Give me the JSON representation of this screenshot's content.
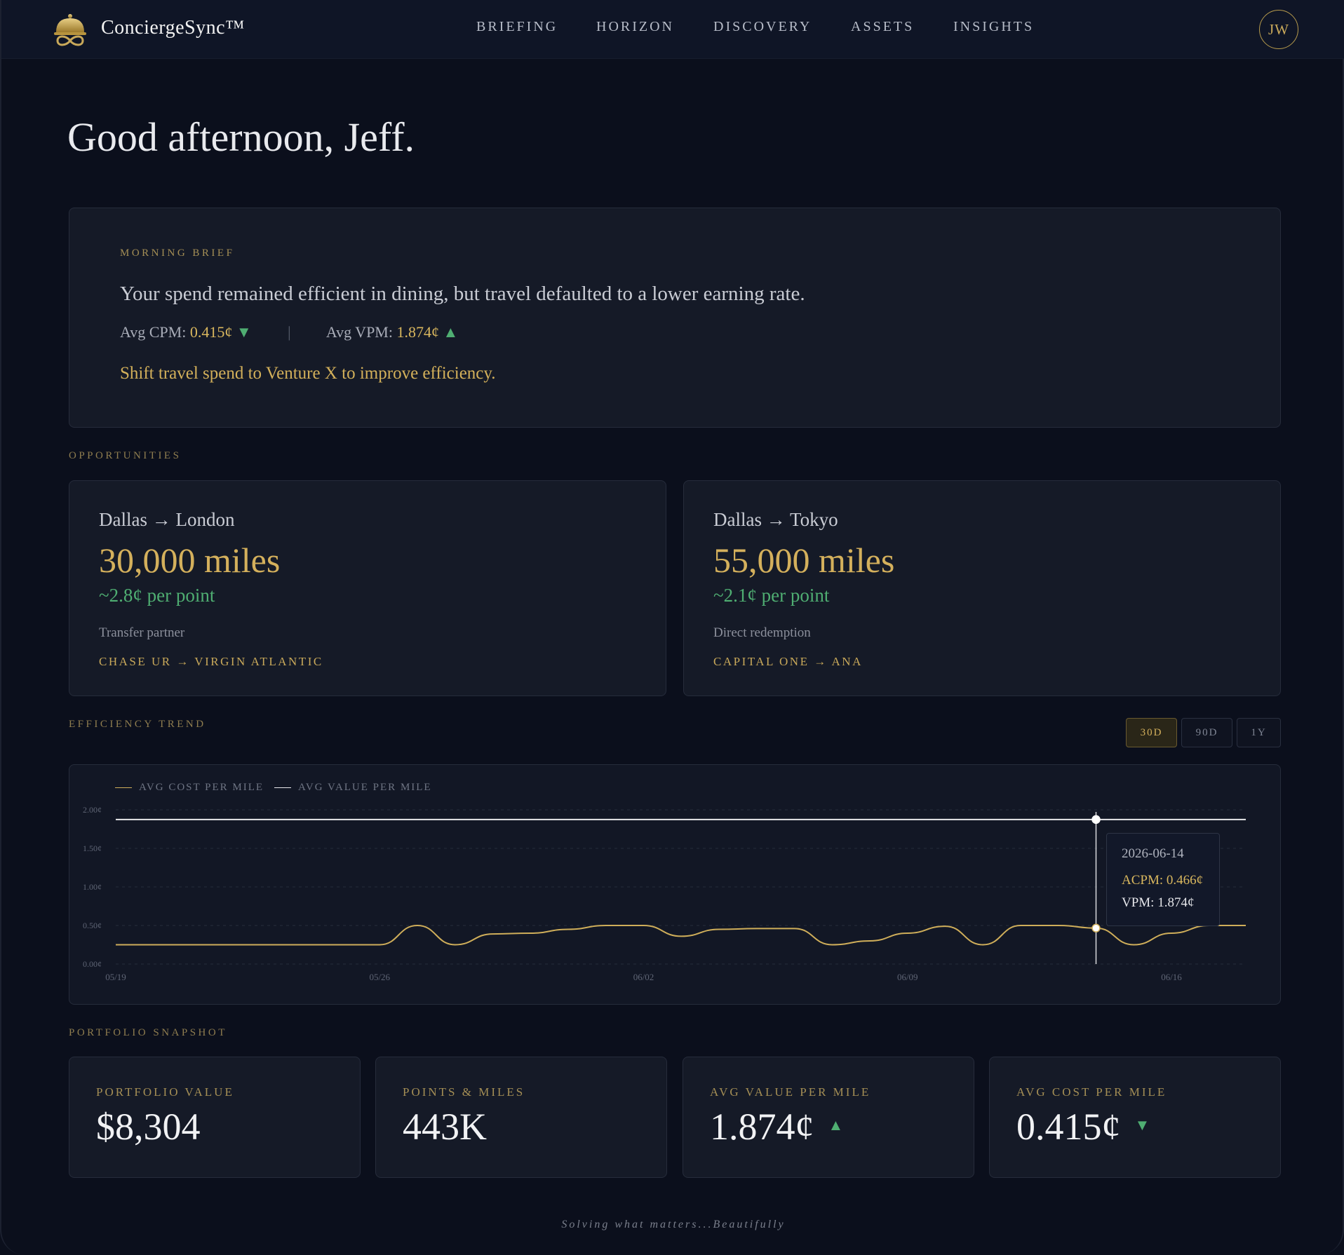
{
  "app": {
    "brand": "ConciergeSync™",
    "avatar_initials": "JW"
  },
  "nav": [
    {
      "label": "BRIEFING"
    },
    {
      "label": "HORIZON"
    },
    {
      "label": "DISCOVERY"
    },
    {
      "label": "ASSETS"
    },
    {
      "label": "INSIGHTS"
    }
  ],
  "greeting": "Good afternoon, Jeff.",
  "brief": {
    "eyebrow": "MORNING BRIEF",
    "text": "Your spend remained efficient in dining, but travel defaulted to a lower earning rate.",
    "cpm_label": "Avg CPM:",
    "cpm_value": "0.415¢",
    "cpm_arrow": "▼",
    "divider": "|",
    "vpm_label": "Avg VPM:",
    "vpm_value": "1.874¢",
    "vpm_arrow": "▲",
    "recommendation": "Shift travel spend to Venture X to improve efficiency."
  },
  "opportunities": {
    "label": "OPPORTUNITIES",
    "items": [
      {
        "route": "Dallas → London",
        "miles": "30,000 miles",
        "cpp": "~2.8¢ per point",
        "type": "Transfer partner",
        "partner": "CHASE UR → VIRGIN ATLANTIC"
      },
      {
        "route": "Dallas → Tokyo",
        "miles": "55,000 miles",
        "cpp": "~2.1¢ per point",
        "type": "Direct redemption",
        "partner": "CAPITAL ONE → ANA"
      }
    ]
  },
  "trend": {
    "label": "EFFICIENCY TREND",
    "ranges": [
      {
        "label": "30D",
        "active": true
      },
      {
        "label": "90D",
        "active": false
      },
      {
        "label": "1Y",
        "active": false
      }
    ],
    "tooltip": {
      "date": "2026-06-14",
      "acpm": "ACPM: 0.466¢",
      "vpm": "VPM: 1.874¢"
    }
  },
  "chart_data": {
    "type": "line",
    "legend": [
      "AVG COST PER MILE",
      "AVG VALUE PER MILE"
    ],
    "x_ticks": [
      "05/19",
      "05/26",
      "06/02",
      "06/09",
      "06/16"
    ],
    "y_ticks": [
      "2.00¢",
      "1.50¢",
      "1.00¢",
      "0.50¢",
      "0.00¢"
    ],
    "ylim": [
      0,
      2.0
    ],
    "x": [
      "05/19",
      "05/20",
      "05/21",
      "05/22",
      "05/23",
      "05/24",
      "05/25",
      "05/26",
      "05/27",
      "05/28",
      "05/29",
      "05/30",
      "05/31",
      "06/01",
      "06/02",
      "06/03",
      "06/04",
      "06/05",
      "06/06",
      "06/07",
      "06/08",
      "06/09",
      "06/10",
      "06/11",
      "06/12",
      "06/13",
      "06/14",
      "06/15",
      "06/16",
      "06/17"
    ],
    "series": [
      {
        "name": "AVG COST PER MILE",
        "color": "#cfae5a",
        "values": [
          0.25,
          0.25,
          0.25,
          0.25,
          0.25,
          0.25,
          0.25,
          0.25,
          0.5,
          0.25,
          0.39,
          0.4,
          0.45,
          0.5,
          0.5,
          0.36,
          0.45,
          0.46,
          0.46,
          0.25,
          0.3,
          0.4,
          0.49,
          0.25,
          0.5,
          0.5,
          0.466,
          0.25,
          0.4,
          0.5
        ]
      },
      {
        "name": "AVG VALUE PER MILE",
        "color": "#e8e8ea",
        "values": [
          1.874,
          1.874,
          1.874,
          1.874,
          1.874,
          1.874,
          1.874,
          1.874,
          1.874,
          1.874,
          1.874,
          1.874,
          1.874,
          1.874,
          1.874,
          1.874,
          1.874,
          1.874,
          1.874,
          1.874,
          1.874,
          1.874,
          1.874,
          1.874,
          1.874,
          1.874,
          1.874,
          1.874,
          1.874,
          1.874
        ]
      }
    ],
    "highlight_x": "06/14",
    "grid": true,
    "legend_position": "top-left"
  },
  "portfolio": {
    "label": "PORTFOLIO SNAPSHOT",
    "kpis": [
      {
        "label": "PORTFOLIO VALUE",
        "value": "$8,304",
        "arrow": ""
      },
      {
        "label": "POINTS & MILES",
        "value": "443K",
        "arrow": ""
      },
      {
        "label": "AVG VALUE PER MILE",
        "value": "1.874¢",
        "arrow": "▲"
      },
      {
        "label": "AVG COST PER MILE",
        "value": "0.415¢",
        "arrow": "▼"
      }
    ]
  },
  "footer": "Solving what matters...Beautifully",
  "colors": {
    "accent": "#d4b05c",
    "positive": "#4fae72",
    "bg": "#0b0f1c",
    "card": "#151a27"
  }
}
